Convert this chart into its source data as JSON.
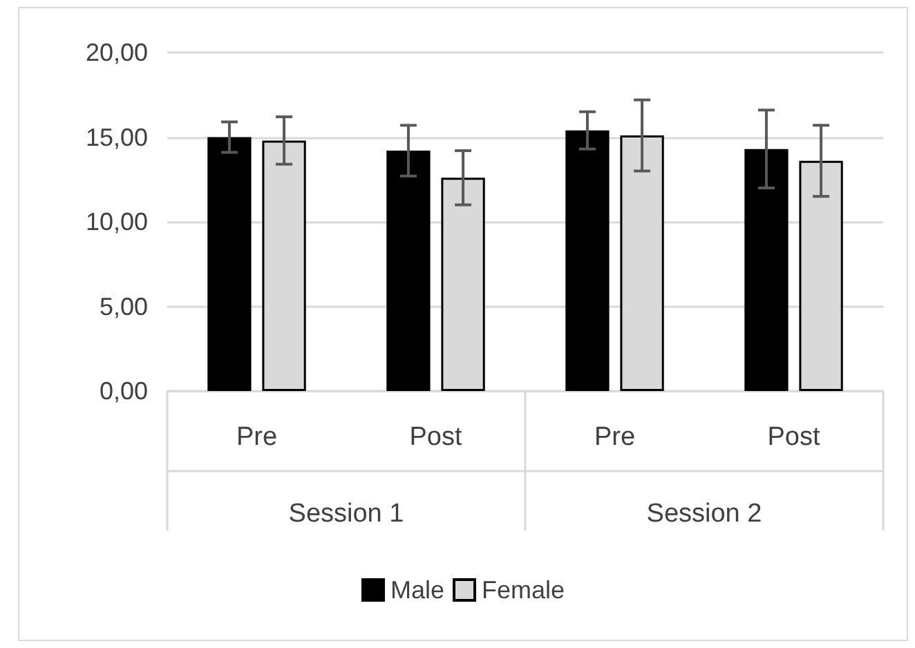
{
  "chart_data": {
    "type": "bar",
    "categories": [
      "Pre",
      "Post",
      "Pre",
      "Post"
    ],
    "series": [
      {
        "name": "Male",
        "color": "#000000",
        "values": [
          15.0,
          14.2,
          15.4,
          14.3
        ],
        "errors": [
          0.9,
          1.5,
          1.1,
          2.3
        ]
      },
      {
        "name": "Female",
        "color": "#d9d9d9",
        "values": [
          14.8,
          12.6,
          15.1,
          13.6
        ],
        "errors": [
          1.4,
          1.6,
          2.1,
          2.1
        ]
      }
    ],
    "annotations": [
      "Session 1",
      "Session 2"
    ],
    "ylim": [
      0,
      20
    ],
    "yticks": [
      {
        "value": 0,
        "label": "0,00"
      },
      {
        "value": 5,
        "label": "5,00"
      },
      {
        "value": 10,
        "label": "10,00"
      },
      {
        "value": 15,
        "label": "15,00"
      },
      {
        "value": 20,
        "label": "20,00"
      }
    ],
    "grid": "y",
    "legend": "bottom"
  }
}
